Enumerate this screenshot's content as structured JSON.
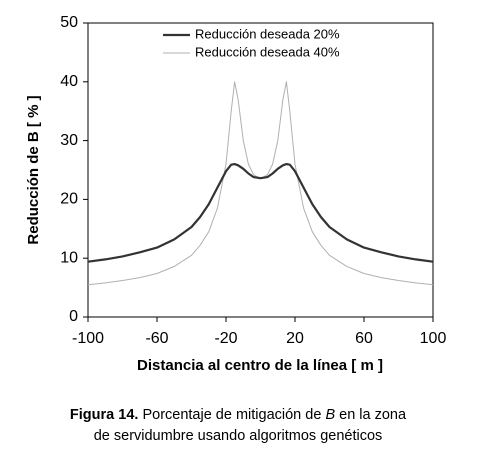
{
  "chart_data": {
    "type": "line",
    "x_label": "Distancia al centro de la línea [ m ]",
    "y_label": "Reducción de B [ % ]",
    "x": [
      -100,
      -90,
      -80,
      -70,
      -60,
      -50,
      -40,
      -35,
      -30,
      -25,
      -20,
      -17,
      -15,
      -13,
      -10,
      -7,
      -4,
      0,
      4,
      7,
      10,
      13,
      15,
      17,
      20,
      25,
      30,
      35,
      40,
      50,
      60,
      70,
      80,
      90,
      100
    ],
    "series": [
      {
        "name": "Reducción deseada 20%",
        "color": "#333333",
        "width": 2.2,
        "values": [
          9.4,
          9.8,
          10.3,
          11,
          11.8,
          13.2,
          15.3,
          17,
          19.2,
          22,
          24.8,
          25.9,
          26,
          25.8,
          25.2,
          24.4,
          23.8,
          23.6,
          23.8,
          24.4,
          25.2,
          25.8,
          26,
          25.9,
          24.8,
          22,
          19.2,
          17,
          15.3,
          13.2,
          11.8,
          11,
          10.3,
          9.8,
          9.4
        ]
      },
      {
        "name": "Reducción deseada 40%",
        "color": "#b0b0b0",
        "width": 1,
        "values": [
          5.5,
          5.8,
          6.2,
          6.7,
          7.4,
          8.6,
          10.5,
          12.2,
          14.5,
          18.5,
          26,
          35,
          40,
          37,
          30,
          26,
          24.2,
          23.5,
          24.2,
          26,
          30,
          37,
          40,
          35,
          26,
          18.5,
          14.5,
          12.2,
          10.5,
          8.6,
          7.4,
          6.7,
          6.2,
          5.8,
          5.5
        ]
      }
    ],
    "xlim": [
      -100,
      100
    ],
    "xticks": [
      -100,
      -60,
      -20,
      20,
      60,
      100
    ],
    "ylim": [
      0,
      50
    ],
    "yticks": [
      0,
      10,
      20,
      30,
      40,
      50
    ],
    "legend": "top"
  },
  "caption": {
    "label": "Figura 14.",
    "line1_before": "Porcentaje de mitigación de ",
    "italic": "B",
    "line1_after": " en la zona",
    "line2": "de servidumbre usando algoritmos genéticos"
  }
}
